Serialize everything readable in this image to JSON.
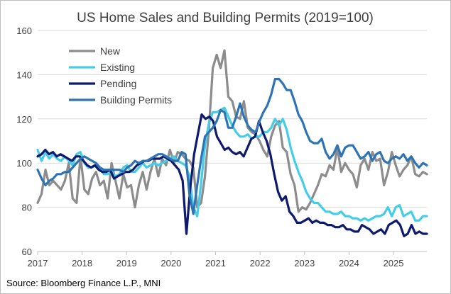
{
  "chart_data": {
    "type": "line",
    "title": "US Home Sales and Building Permits (2019=100)",
    "xlabel": "",
    "ylabel": "",
    "ylim": [
      60,
      160
    ],
    "y_ticks": [
      60,
      80,
      100,
      120,
      140,
      160
    ],
    "x_ticks": [
      2017,
      2018,
      2019,
      2020,
      2021,
      2022,
      2023,
      2024,
      2025
    ],
    "x_range": [
      2017.0,
      2025.75
    ],
    "grid": "horizontal",
    "legend_position": "top-left",
    "source": "Source: Bloomberg Finance L.P., MNI",
    "series": [
      {
        "name": "New",
        "color": "#8c8c8c",
        "start": 2017.0,
        "values": [
          82,
          86,
          97,
          90,
          92,
          90,
          88,
          92,
          100,
          84,
          82,
          103,
          88,
          86,
          93,
          96,
          90,
          92,
          84,
          100,
          92,
          84,
          95,
          89,
          90,
          80,
          90,
          96,
          88,
          96,
          102,
          94,
          102,
          99,
          106,
          100,
          105,
          104,
          102,
          101,
          98,
          80,
          82,
          94,
          115,
          143,
          149,
          143,
          151,
          130,
          128,
          121,
          120,
          128,
          116,
          114,
          113,
          110,
          106,
          103,
          112,
          117,
          119,
          107,
          105,
          95,
          90,
          78,
          80,
          79,
          82,
          86,
          90,
          95,
          94,
          99,
          97,
          107,
          96,
          100,
          97,
          95,
          89,
          99,
          102,
          97,
          105,
          101,
          102,
          90,
          96,
          105,
          99,
          94,
          97,
          99,
          103,
          95,
          94,
          96,
          95
        ]
      },
      {
        "name": "Existing",
        "color": "#43cde8",
        "start": 2017.0,
        "values": [
          106,
          101,
          105,
          102,
          104,
          102,
          101,
          103,
          101,
          99,
          104,
          105,
          100,
          98,
          98,
          99,
          98,
          95,
          95,
          96,
          94,
          95,
          98,
          99,
          96,
          96,
          98,
          100,
          98,
          99,
          100,
          99,
          100,
          101,
          102,
          103,
          101,
          100,
          99,
          94,
          80,
          76,
          91,
          108,
          118,
          123,
          123,
          124,
          125,
          121,
          117,
          114,
          112,
          112,
          113,
          111,
          112,
          112,
          114,
          114,
          116,
          120,
          117,
          120,
          115,
          107,
          101,
          96,
          92,
          87,
          84,
          82,
          82,
          80,
          78,
          78,
          77,
          77,
          78,
          76,
          76,
          75,
          75,
          74,
          75,
          74,
          75,
          76,
          76,
          77,
          80,
          76,
          80,
          81,
          76,
          77,
          78,
          74,
          74,
          76,
          76
        ]
      },
      {
        "name": "Pending",
        "color": "#0d1a6e",
        "start": 2017.0,
        "values": [
          103,
          104,
          106,
          104,
          105,
          103,
          104,
          103,
          102,
          101,
          103,
          103,
          101,
          99,
          98,
          99,
          97,
          96,
          96,
          97,
          93,
          94,
          95,
          96,
          96,
          97,
          99,
          100,
          101,
          101,
          102,
          102,
          102,
          103,
          102,
          101,
          99,
          97,
          92,
          68,
          89,
          104,
          113,
          122,
          120,
          121,
          119,
          112,
          109,
          106,
          107,
          105,
          104,
          105,
          103,
          107,
          111,
          112,
          119,
          114,
          110,
          104,
          95,
          87,
          83,
          85,
          78,
          76,
          73,
          73,
          74,
          75,
          73,
          74,
          73,
          73,
          72,
          72,
          71,
          71,
          72,
          70,
          70,
          69,
          69,
          72,
          71,
          70,
          68,
          69,
          70,
          68,
          72,
          73,
          74,
          72,
          67,
          68,
          72,
          68,
          69,
          68,
          68
        ]
      },
      {
        "name": "Building Permits",
        "color": "#2e74b5",
        "start": 2017.0,
        "values": [
          97,
          93,
          90,
          92,
          93,
          95,
          95,
          96,
          96,
          98,
          100,
          102,
          103,
          102,
          101,
          100,
          98,
          97,
          97,
          97,
          97,
          97,
          96,
          98,
          99,
          101,
          100,
          101,
          101,
          102,
          103,
          104,
          104,
          103,
          102,
          101,
          101,
          105,
          104,
          86,
          77,
          90,
          102,
          112,
          114,
          116,
          119,
          124,
          123,
          116,
          116,
          121,
          127,
          121,
          117,
          115,
          114,
          119,
          123,
          126,
          131,
          138,
          138,
          136,
          133,
          133,
          128,
          122,
          119,
          114,
          110,
          109,
          109,
          111,
          105,
          102,
          104,
          108,
          103,
          107,
          108,
          108,
          105,
          102,
          103,
          105,
          101,
          104,
          105,
          101,
          100,
          102,
          103,
          102,
          104,
          101,
          103,
          100,
          98,
          100,
          99
        ]
      }
    ]
  }
}
